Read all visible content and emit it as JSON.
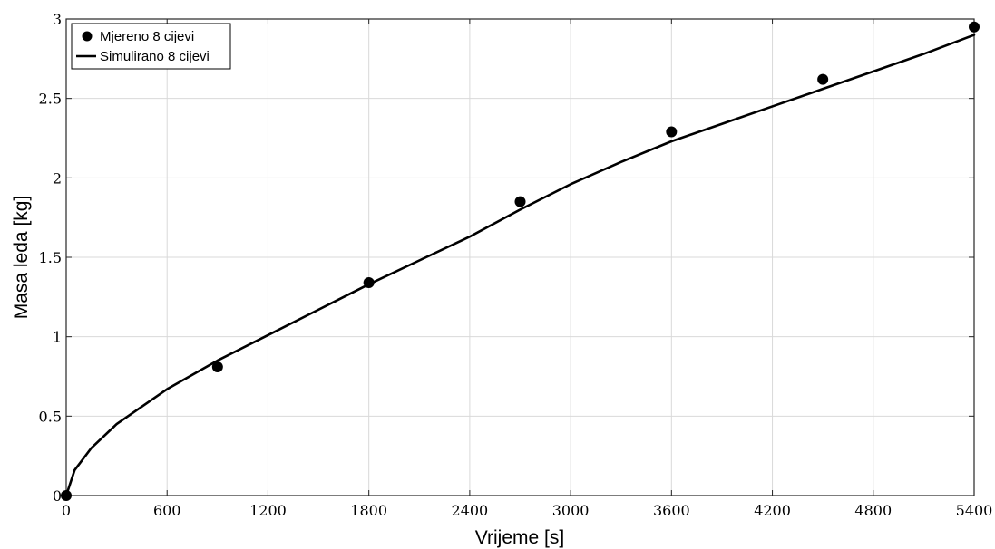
{
  "chart_data": {
    "type": "scatter",
    "xlabel": "Vrijeme [s]",
    "ylabel": "Masa leda [kg]",
    "xlim": [
      0,
      5400
    ],
    "ylim": [
      0,
      3
    ],
    "x_ticks": [
      0,
      600,
      1200,
      1800,
      2400,
      3000,
      3600,
      4200,
      4800,
      5400
    ],
    "y_ticks": [
      0,
      0.5,
      1,
      1.5,
      2,
      2.5,
      3
    ],
    "grid": true,
    "legend_position": "top-left",
    "colors": {
      "series": "#000000",
      "grid": "#d9d9d9",
      "axis": "#262626"
    },
    "series": [
      {
        "name": "Mjereno 8 cijevi",
        "mode": "markers",
        "x": [
          0,
          900,
          1800,
          2700,
          3600,
          4500,
          5400
        ],
        "y": [
          0,
          0.81,
          1.34,
          1.85,
          2.29,
          2.62,
          2.95
        ]
      },
      {
        "name": "Simulirano 8 cijevi",
        "mode": "line",
        "x": [
          0,
          50,
          150,
          300,
          600,
          900,
          1200,
          1500,
          1800,
          2100,
          2400,
          2700,
          3000,
          3300,
          3600,
          3900,
          4200,
          4500,
          4800,
          5100,
          5400
        ],
        "y": [
          0,
          0.16,
          0.3,
          0.45,
          0.67,
          0.85,
          1.01,
          1.17,
          1.33,
          1.48,
          1.63,
          1.8,
          1.96,
          2.1,
          2.23,
          2.34,
          2.45,
          2.56,
          2.67,
          2.78,
          2.9
        ]
      }
    ]
  }
}
